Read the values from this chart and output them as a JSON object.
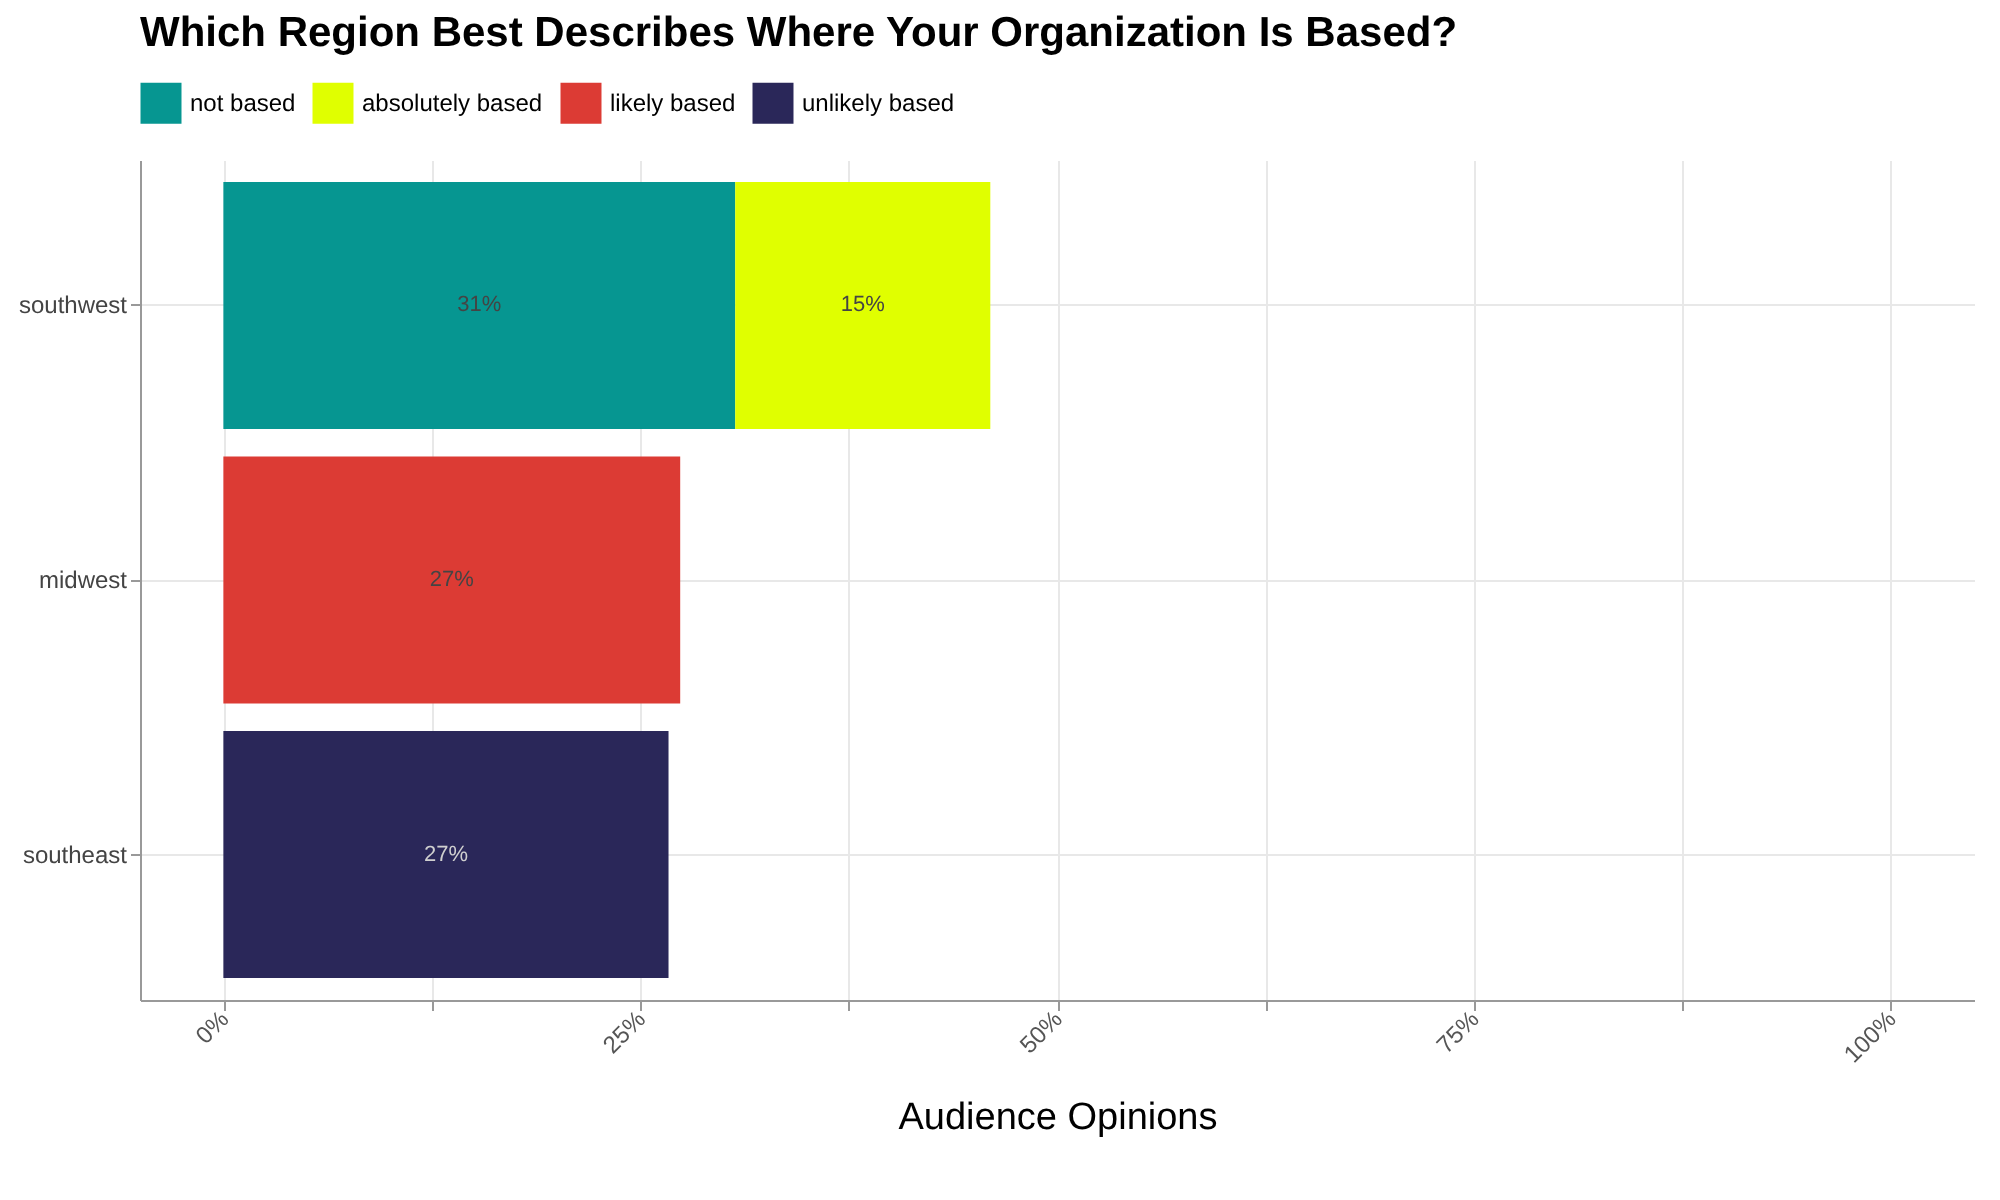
{
  "chart_data": {
    "type": "bar",
    "orientation": "horizontal",
    "stacked": true,
    "title": "Which Region Best Describes Where Your Organization Is Based?",
    "xlabel": "Audience Opinions",
    "categories": [
      "southwest",
      "midwest",
      "southeast"
    ],
    "series": [
      {
        "name": "not based",
        "color": "#069691",
        "values": [
          30.7,
          null,
          null
        ],
        "value_labels": [
          "31%",
          null,
          null
        ]
      },
      {
        "name": "absolutely based",
        "color": "#e0ff00",
        "values": [
          15.3,
          null,
          null
        ],
        "value_labels": [
          "15%",
          null,
          null
        ]
      },
      {
        "name": "likely based",
        "color": "#dc3b34",
        "values": [
          null,
          27.4,
          null
        ],
        "value_labels": [
          null,
          "27%",
          null
        ]
      },
      {
        "name": "unlikely based",
        "color": "#2a2759",
        "values": [
          null,
          null,
          26.7
        ],
        "value_labels": [
          null,
          null,
          "27%"
        ]
      }
    ],
    "xlim": [
      -5,
      105
    ],
    "xticks": [
      {
        "value": 0,
        "label": "0%"
      },
      {
        "value": 12.5,
        "label": null
      },
      {
        "value": 25,
        "label": "25%"
      },
      {
        "value": 37.5,
        "label": null
      },
      {
        "value": 50,
        "label": "50%"
      },
      {
        "value": 62.5,
        "label": null
      },
      {
        "value": 75,
        "label": "75%"
      },
      {
        "value": 87.5,
        "label": null
      },
      {
        "value": 100,
        "label": "100%"
      }
    ],
    "grid": true,
    "legend": "top"
  }
}
